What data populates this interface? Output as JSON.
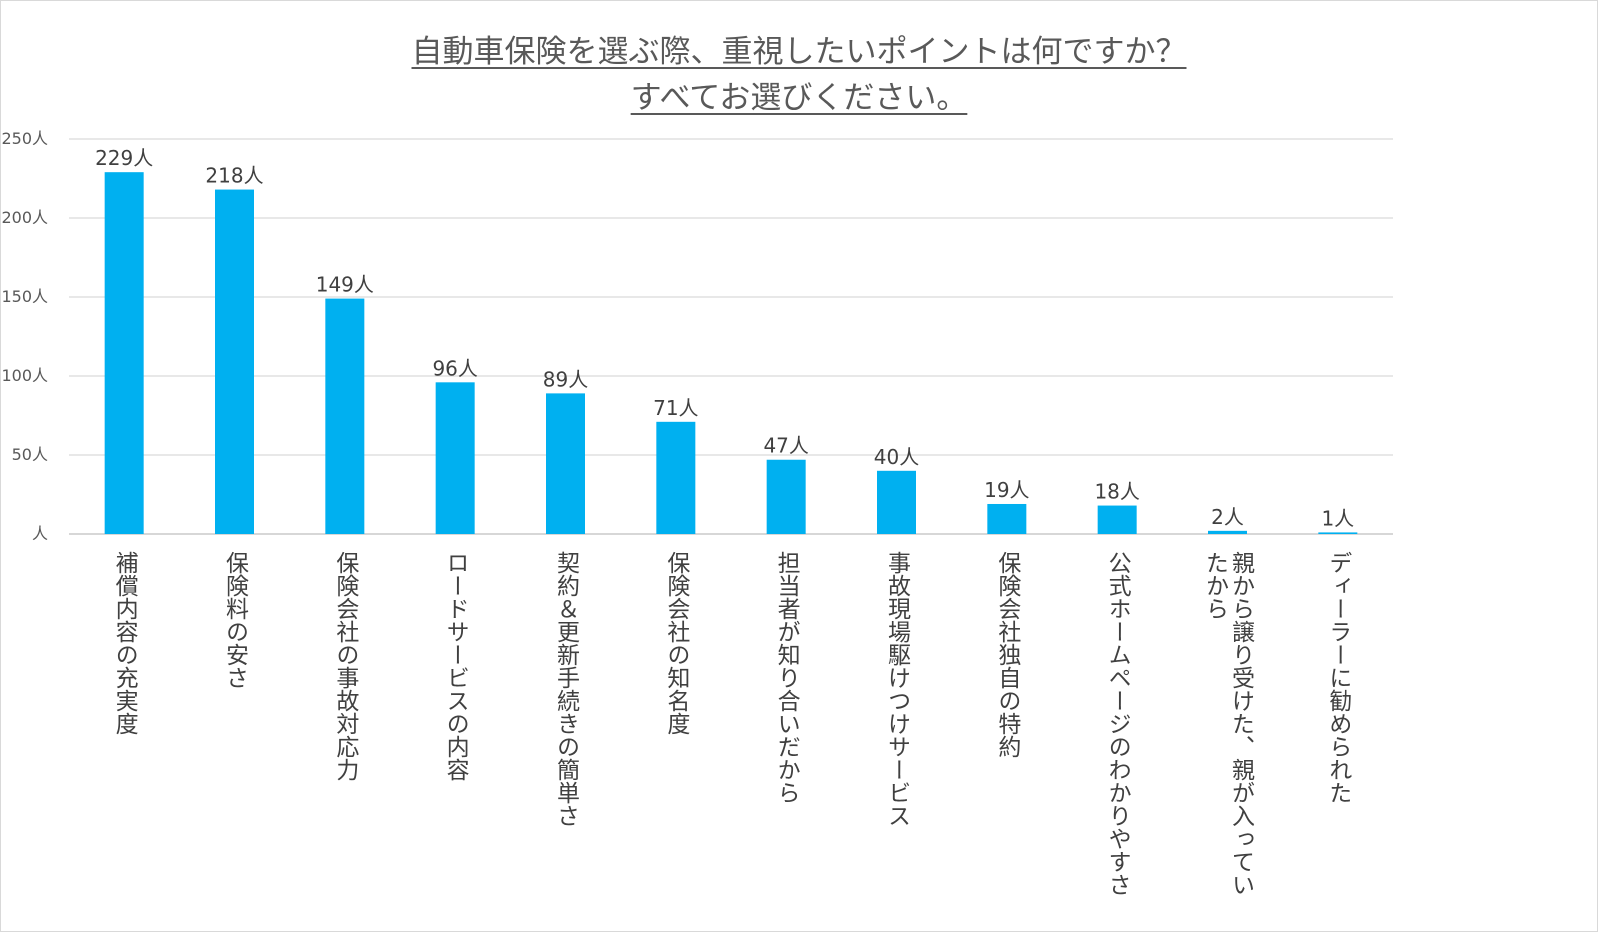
{
  "chart_data": {
    "type": "bar",
    "title": "自動車保険を選ぶ際、重視したいポイントは何ですか？",
    "subtitle": "すべてお選びください。",
    "xlabel": "",
    "ylabel": "",
    "ylim": [
      0,
      250
    ],
    "grid": true,
    "legend": "none",
    "bar_color": "#00B0F0",
    "yticks": [
      0,
      50,
      100,
      150,
      200,
      250
    ],
    "ytick_labels": [
      "人",
      "50人",
      "100人",
      "150人",
      "200人",
      "250人"
    ],
    "categories": [
      "補償内容の充実度",
      "保険料の安さ",
      "保険会社の事故対応力",
      "ロードサービスの内容",
      "契約＆更新手続きの簡単さ",
      "保険会社の知名度",
      "担当者が知り合いだから",
      "事故現場駆けつけサービス",
      "保険会社独自の特約",
      "公式ホームページのわかりやすさ",
      "親から譲り受けた、親が入っていたから",
      "ディーラーに勧められた"
    ],
    "category_lines": [
      [
        "補償内容の充実度"
      ],
      [
        "保険料の安さ"
      ],
      [
        "保険会社の事故対応力"
      ],
      [
        "ロードサービスの内容"
      ],
      [
        "契約＆更新手続きの簡単さ"
      ],
      [
        "保険会社の知名度"
      ],
      [
        "担当者が知り合いだから"
      ],
      [
        "事故現場駆けつけサービス"
      ],
      [
        "保険会社独自の特約"
      ],
      [
        "公式ホームページのわかりやすさ"
      ],
      [
        "親から譲り受けた、親が入ってい",
        "たから"
      ],
      [
        "ディーラーに勧められた"
      ]
    ],
    "values": [
      229,
      218,
      149,
      96,
      89,
      71,
      47,
      40,
      19,
      18,
      2,
      1
    ],
    "data_labels": [
      "229人",
      "218人",
      "149人",
      "96人",
      "89人",
      "71人",
      "47人",
      "40人",
      "19人",
      "18人",
      "2人",
      "1人"
    ]
  }
}
